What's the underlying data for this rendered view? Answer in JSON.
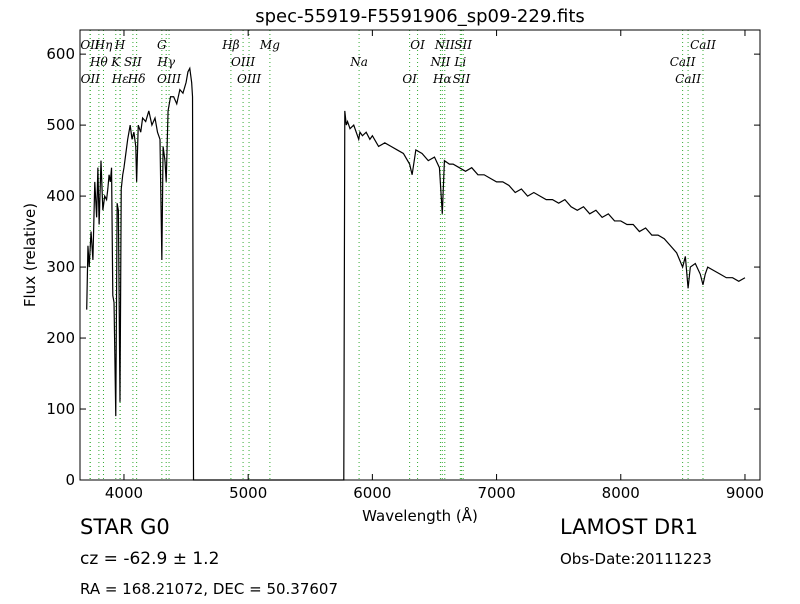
{
  "chart_data": {
    "type": "line",
    "title": "spec-55919-F5591906_sp09-229.fits",
    "x_label": "Wavelength (Å)",
    "y_label": "Flux (relative)",
    "xlim": [
      3646,
      9121
    ],
    "ylim": [
      0,
      634
    ],
    "xticks": [
      4000,
      5000,
      6000,
      7000,
      8000,
      9000
    ],
    "yticks": [
      0,
      100,
      200,
      300,
      400,
      500,
      600
    ],
    "series": [
      {
        "name": "spectrum",
        "color": "#000000",
        "x": [
          3700,
          3710,
          3720,
          3735,
          3750,
          3765,
          3780,
          3790,
          3800,
          3815,
          3830,
          3845,
          3860,
          3870,
          3880,
          3890,
          3900,
          3910,
          3920,
          3934,
          3945,
          3955,
          3968,
          3978,
          3990,
          4000,
          4015,
          4030,
          4050,
          4065,
          4080,
          4095,
          4102,
          4115,
          4135,
          4150,
          4175,
          4200,
          4225,
          4250,
          4270,
          4290,
          4305,
          4315,
          4330,
          4340,
          4355,
          4375,
          4400,
          4425,
          4450,
          4475,
          4500,
          4515,
          4530,
          4545,
          4552,
          4560,
          5770,
          5778,
          5790,
          5800,
          5820,
          5850,
          5870,
          5890,
          5900,
          5920,
          5950,
          5980,
          6000,
          6050,
          6100,
          6150,
          6200,
          6250,
          6300,
          6320,
          6350,
          6400,
          6450,
          6500,
          6540,
          6563,
          6580,
          6620,
          6650,
          6700,
          6750,
          6800,
          6850,
          6900,
          6950,
          7000,
          7050,
          7100,
          7150,
          7200,
          7250,
          7300,
          7350,
          7400,
          7450,
          7500,
          7550,
          7600,
          7650,
          7700,
          7750,
          7800,
          7850,
          7900,
          7950,
          8000,
          8050,
          8100,
          8150,
          8200,
          8250,
          8300,
          8350,
          8400,
          8450,
          8498,
          8520,
          8542,
          8560,
          8600,
          8640,
          8662,
          8680,
          8700,
          8750,
          8800,
          8850,
          8900,
          8950,
          9000
        ],
        "values": [
          240,
          330,
          300,
          350,
          310,
          420,
          370,
          440,
          360,
          450,
          380,
          400,
          395,
          410,
          430,
          420,
          440,
          260,
          250,
          90,
          390,
          380,
          110,
          410,
          430,
          440,
          460,
          480,
          500,
          480,
          490,
          470,
          420,
          500,
          490,
          510,
          505,
          520,
          500,
          510,
          490,
          480,
          310,
          470,
          450,
          420,
          520,
          540,
          540,
          530,
          550,
          545,
          560,
          575,
          580,
          560,
          540,
          0,
          0,
          520,
          500,
          505,
          495,
          500,
          490,
          480,
          490,
          485,
          490,
          480,
          485,
          470,
          475,
          470,
          465,
          460,
          445,
          430,
          465,
          460,
          450,
          455,
          440,
          375,
          450,
          445,
          445,
          440,
          435,
          440,
          430,
          430,
          425,
          420,
          420,
          415,
          405,
          410,
          400,
          405,
          400,
          395,
          395,
          390,
          395,
          385,
          380,
          385,
          375,
          380,
          370,
          375,
          365,
          365,
          360,
          360,
          350,
          355,
          345,
          345,
          340,
          330,
          320,
          300,
          315,
          270,
          300,
          305,
          290,
          275,
          290,
          300,
          295,
          290,
          285,
          285,
          280,
          285
        ]
      }
    ],
    "spectral_lines": [
      {
        "name": "OII",
        "wavelength": 3727
      },
      {
        "name": "Hθ",
        "wavelength": 3798
      },
      {
        "name": "OII",
        "wavelength": 3729
      },
      {
        "name": "Hη",
        "wavelength": 3835
      },
      {
        "name": "K",
        "wavelength": 3934
      },
      {
        "name": "Hε",
        "wavelength": 3970
      },
      {
        "name": "H",
        "wavelength": 3968
      },
      {
        "name": "SII",
        "wavelength": 4072
      },
      {
        "name": "Hδ",
        "wavelength": 4102
      },
      {
        "name": "G",
        "wavelength": 4305
      },
      {
        "name": "Hγ",
        "wavelength": 4340
      },
      {
        "name": "OIII",
        "wavelength": 4363
      },
      {
        "name": "Hβ",
        "wavelength": 4861
      },
      {
        "name": "OIII",
        "wavelength": 4959
      },
      {
        "name": "OIII",
        "wavelength": 5007
      },
      {
        "name": "Mg",
        "wavelength": 5175
      },
      {
        "name": "Na",
        "wavelength": 5893
      },
      {
        "name": "OI",
        "wavelength": 6300
      },
      {
        "name": "OI",
        "wavelength": 6364
      },
      {
        "name": "NII",
        "wavelength": 6548
      },
      {
        "name": "Hα",
        "wavelength": 6563
      },
      {
        "name": "NII",
        "wavelength": 6583
      },
      {
        "name": "Li",
        "wavelength": 6708
      },
      {
        "name": "SII",
        "wavelength": 6717
      },
      {
        "name": "SII",
        "wavelength": 6731
      },
      {
        "name": "CaII",
        "wavelength": 8498
      },
      {
        "name": "CaII",
        "wavelength": 8542
      },
      {
        "name": "CaII",
        "wavelength": 8662
      }
    ],
    "line_color": "#3a3",
    "annotations": [
      "STAR   G0",
      "cz = -62.9 ± 1.2",
      "RA = 168.21072, DEC = 50.37607",
      "LAMOST DR1",
      "Obs-Date:20111223"
    ]
  }
}
